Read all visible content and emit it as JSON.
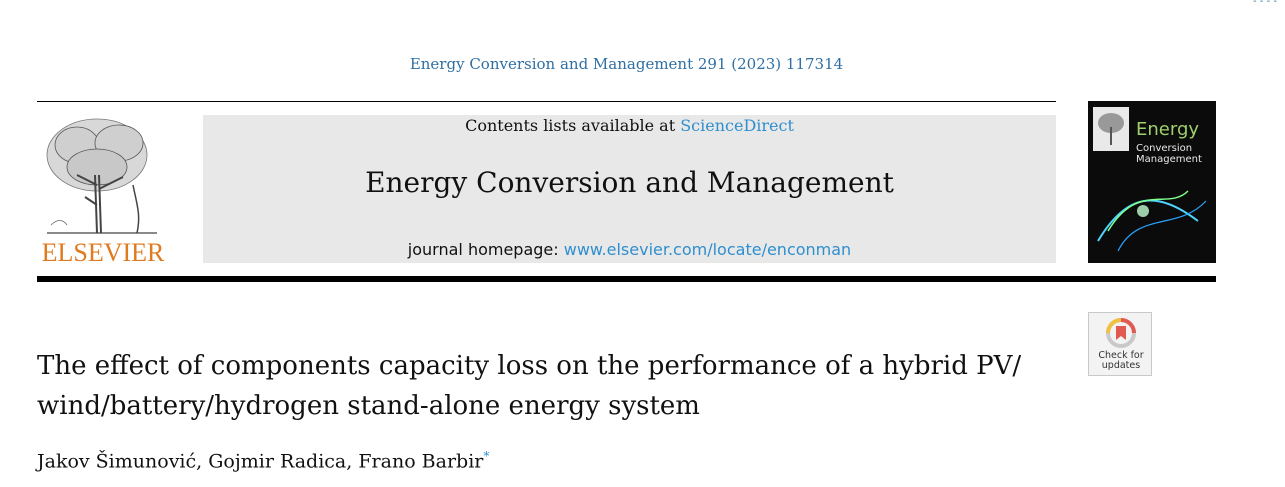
{
  "header": {
    "citation": "Energy Conversion and Management 291 (2023) 117314",
    "contents_prefix": "Contents lists available at ",
    "contents_link": "ScienceDirect",
    "journal_title": "Energy Conversion and Management",
    "homepage_prefix": "journal homepage: ",
    "homepage_link": "www.elsevier.com/locate/enconman",
    "publisher_logo_text": "ELSEVIER"
  },
  "cover": {
    "title": "Energy",
    "subtitle_line1": "Conversion",
    "subtitle_line2": "Management",
    "icon": "journal-cover-image"
  },
  "check_badge": {
    "line1": "Check for",
    "line2": "updates",
    "icon": "check-for-updates-icon"
  },
  "article": {
    "title_line1": "The effect of components capacity loss on the performance of a hybrid PV/",
    "title_line2": "wind/battery/hydrogen stand-alone energy system",
    "authors": [
      {
        "name": "Jakov Šimunović",
        "sep": ", "
      },
      {
        "name": "Gojmir Radica",
        "sep": ", "
      },
      {
        "name": "Frano Barbir",
        "mark": "*"
      }
    ]
  },
  "colors": {
    "link": "#2f8fce",
    "citation": "#2f6fa3",
    "elsevier_orange": "#e07a1f",
    "banner_bg": "#e8e8e8"
  }
}
